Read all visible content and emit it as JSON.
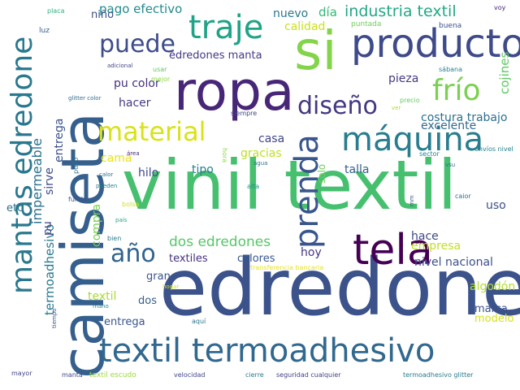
{
  "words": [
    {
      "text": "vinil textil",
      "color": "#46c06f"
    },
    {
      "text": "edredone",
      "color": "#3b528b"
    },
    {
      "text": "camiseta",
      "color": "#355f8d"
    },
    {
      "text": "ropa",
      "color": "#482677"
    },
    {
      "text": "si",
      "color": "#84d44b"
    },
    {
      "text": "textil termoadhesivo",
      "color": "#31688e"
    },
    {
      "text": "producto",
      "color": "#3e4a89"
    },
    {
      "text": "mantas edredone",
      "color": "#2a788e"
    },
    {
      "text": "tela",
      "color": "#440154"
    },
    {
      "text": "prenda",
      "color": "#39568c"
    },
    {
      "text": "máquina",
      "color": "#287d8e"
    },
    {
      "text": "traje",
      "color": "#20a386"
    },
    {
      "text": "material",
      "color": "#d8e219"
    },
    {
      "text": "frío",
      "color": "#7ad151"
    },
    {
      "text": "diseño",
      "color": "#453781"
    },
    {
      "text": "puede",
      "color": "#3e4c8a"
    },
    {
      "text": "año",
      "color": "#33638d"
    },
    {
      "text": "dos edredones",
      "color": "#56c667"
    },
    {
      "text": "industria textil",
      "color": "#22a884"
    },
    {
      "text": "costura trabajo",
      "color": "#2d708e"
    },
    {
      "text": "pu color",
      "color": "#46307e"
    },
    {
      "text": "impermeable",
      "color": "#2c728e"
    },
    {
      "text": "termoadhesivo",
      "color": "#29798e"
    },
    {
      "text": "nivel nacional",
      "color": "#3c508b"
    },
    {
      "text": "excelente",
      "color": "#31688e"
    },
    {
      "text": "edredones manta",
      "color": "#443983"
    },
    {
      "text": "pago efectivo",
      "color": "#238a8d"
    },
    {
      "text": "nuevo",
      "color": "#2a788e"
    },
    {
      "text": "día",
      "color": "#35b779"
    },
    {
      "text": "hacer",
      "color": "#443b84"
    },
    {
      "text": "calidad",
      "color": "#cae11f"
    },
    {
      "text": "gracias",
      "color": "#bddf26"
    },
    {
      "text": "casa",
      "color": "#414487"
    },
    {
      "text": "pieza",
      "color": "#453882"
    },
    {
      "text": "cojines",
      "color": "#5ec962"
    },
    {
      "text": "talla",
      "color": "#34608d"
    },
    {
      "text": "hilo",
      "color": "#3e4989"
    },
    {
      "text": "tipo",
      "color": "#277f8e"
    },
    {
      "text": "cama",
      "color": "#e5e419"
    },
    {
      "text": "empresa",
      "color": "#c2df23"
    },
    {
      "text": "hace",
      "color": "#3f4889"
    },
    {
      "text": "hoy",
      "color": "#453882"
    },
    {
      "text": "uso",
      "color": "#3c4f8a"
    },
    {
      "text": "textiles",
      "color": "#46307e"
    },
    {
      "text": "colores",
      "color": "#38588c"
    },
    {
      "text": "gran",
      "color": "#3a548c"
    },
    {
      "text": "algodón",
      "color": "#b2dd2d"
    },
    {
      "text": "marca",
      "color": "#3b528b"
    },
    {
      "text": "modelo",
      "color": "#d5e21a"
    },
    {
      "text": "entrega",
      "color": "#3a548c"
    },
    {
      "text": "dos",
      "color": "#35608d"
    },
    {
      "text": "textil",
      "color": "#a8db34"
    },
    {
      "text": "niño",
      "color": "#3c4f8a"
    },
    {
      "text": "compra",
      "color": "#7ad151"
    },
    {
      "text": "pu",
      "color": "#404688"
    },
    {
      "text": "etc",
      "color": "#2c718e"
    },
    {
      "text": "solo",
      "color": "#6ccd5a"
    },
    {
      "text": "sirve",
      "color": "#3e4a89"
    },
    {
      "text": "entrega",
      "color": "#3b518b"
    },
    {
      "text": "puntada",
      "color": "#6ece58"
    },
    {
      "text": "buena",
      "color": "#3c508b"
    },
    {
      "text": "mejor",
      "color": "#8bd646"
    },
    {
      "text": "sábana",
      "color": "#26828e"
    },
    {
      "text": "luz",
      "color": "#365d8d"
    },
    {
      "text": "placa",
      "color": "#2db27d"
    },
    {
      "text": "voy",
      "color": "#482374"
    },
    {
      "text": "adicional",
      "color": "#3f4788"
    },
    {
      "text": "usar",
      "color": "#5ec962"
    },
    {
      "text": "precio",
      "color": "#63cb5f"
    },
    {
      "text": "siempre",
      "color": "#414487"
    },
    {
      "text": "glitter color",
      "color": "#2f6c8e"
    },
    {
      "text": "envíos nivel",
      "color": "#26828e"
    },
    {
      "text": "sector",
      "color": "#25848e"
    },
    {
      "text": "hora",
      "color": "#8fd744"
    },
    {
      "text": "área",
      "color": "#482475"
    },
    {
      "text": "agua",
      "color": "#2c728e"
    },
    {
      "text": "alta",
      "color": "#21908d"
    },
    {
      "text": "caior",
      "color": "#2e6e8e"
    },
    {
      "text": "calor",
      "color": "#2e6f8e"
    },
    {
      "text": "puño",
      "color": "#2c718e"
    },
    {
      "text": "funda",
      "color": "#3b518b"
    },
    {
      "text": "pueden",
      "color": "#27808e"
    },
    {
      "text": "bolsa",
      "color": "#d0e11c"
    },
    {
      "text": "país",
      "color": "#22a884"
    },
    {
      "text": "mm",
      "color": "#3d4e8a"
    },
    {
      "text": "ver",
      "color": "#addc30"
    },
    {
      "text": "bien",
      "color": "#2a788e"
    },
    {
      "text": "transferencia bancaria",
      "color": "#e7e419"
    },
    {
      "text": "hogar",
      "color": "#d2e21b"
    },
    {
      "text": "mano",
      "color": "#26828e"
    },
    {
      "text": "aquí",
      "color": "#2a768e"
    },
    {
      "text": "tiempo",
      "color": "#3c4f8a"
    },
    {
      "text": "mayor",
      "color": "#404688"
    },
    {
      "text": "manta",
      "color": "#3f4889"
    },
    {
      "text": "textil escudo",
      "color": "#9dd93b"
    },
    {
      "text": "velocidad",
      "color": "#404688"
    },
    {
      "text": "cierre",
      "color": "#2a788e"
    },
    {
      "text": "seguridad cualquier",
      "color": "#433e85"
    },
    {
      "text": "termoadhesivo glitter",
      "color": "#297b8e"
    },
    {
      "text": "vsu",
      "color": "#2f6b8e"
    }
  ]
}
